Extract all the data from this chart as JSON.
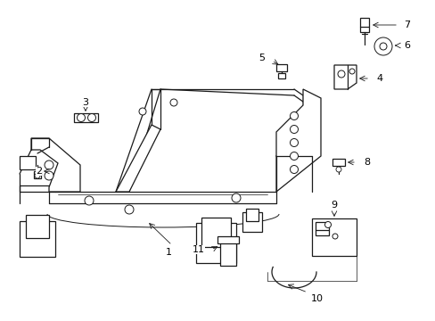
{
  "background_color": "#ffffff",
  "line_color": "#1a1a1a",
  "label_color": "#000000",
  "fig_width": 4.89,
  "fig_height": 3.6,
  "dpi": 100
}
